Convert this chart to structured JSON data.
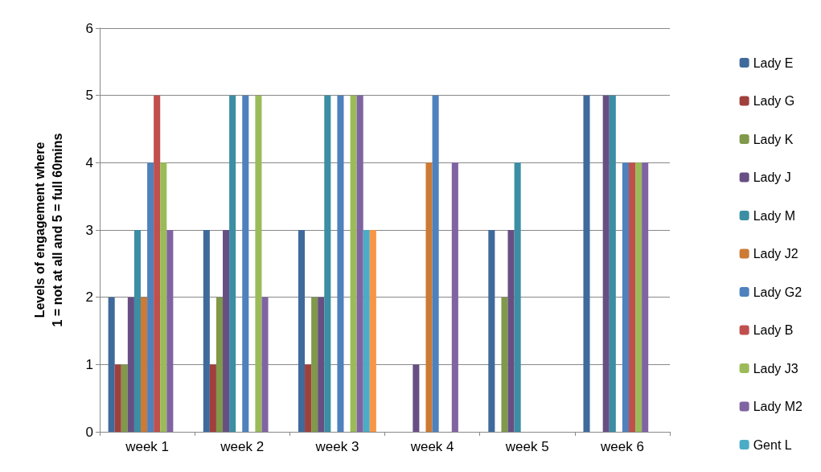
{
  "chart_data": {
    "type": "bar",
    "ylabel": "Levels of engagement where\n1 = not at all and 5 = full 60mins",
    "categories": [
      "week 1",
      "week 2",
      "week 3",
      "week 4",
      "week 5",
      "week 6"
    ],
    "ylim": [
      0,
      6
    ],
    "yticks": [
      0,
      1,
      2,
      3,
      4,
      5,
      6
    ],
    "grid": "y",
    "legend": "right",
    "series": [
      {
        "name": "Lady E",
        "color": "#3f6a9c",
        "values": [
          2,
          3,
          3,
          null,
          3,
          5
        ]
      },
      {
        "name": "Lady G",
        "color": "#a0403d",
        "values": [
          1,
          1,
          1,
          null,
          null,
          null
        ]
      },
      {
        "name": "Lady K",
        "color": "#80994a",
        "values": [
          1,
          2,
          2,
          null,
          2,
          null
        ]
      },
      {
        "name": "Lady J",
        "color": "#674f83",
        "values": [
          2,
          3,
          2,
          1,
          3,
          5
        ]
      },
      {
        "name": "Lady M",
        "color": "#3b8ea4",
        "values": [
          3,
          5,
          5,
          null,
          4,
          5
        ]
      },
      {
        "name": "Lady J2",
        "color": "#cc7a34",
        "values": [
          2,
          null,
          null,
          4,
          null,
          null
        ]
      },
      {
        "name": "Lady G2",
        "color": "#4f81bd",
        "values": [
          4,
          5,
          5,
          5,
          null,
          4
        ]
      },
      {
        "name": "Lady B",
        "color": "#c0504d",
        "values": [
          5,
          null,
          null,
          null,
          null,
          4
        ]
      },
      {
        "name": "Lady J3",
        "color": "#9bbb59",
        "values": [
          4,
          5,
          5,
          null,
          null,
          4
        ]
      },
      {
        "name": "Lady M2",
        "color": "#8064a2",
        "values": [
          3,
          2,
          5,
          4,
          null,
          4
        ]
      },
      {
        "name": "Gent L",
        "color": "#4bacc6",
        "values": [
          null,
          null,
          3,
          null,
          null,
          null
        ]
      },
      {
        "color": "#f79646",
        "values": [
          null,
          null,
          3,
          null,
          null,
          null
        ]
      }
    ]
  }
}
